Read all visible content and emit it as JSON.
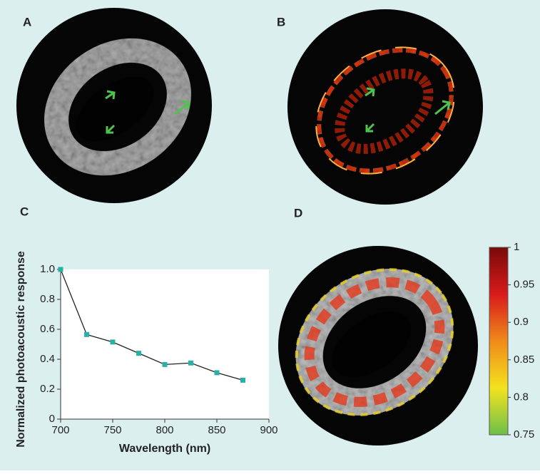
{
  "panels": {
    "a": "A",
    "b": "B",
    "c": "C",
    "d": "D"
  },
  "chart_data": {
    "type": "line",
    "x": [
      700,
      725,
      750,
      775,
      800,
      825,
      850,
      875
    ],
    "series": [
      {
        "name": "Normalized photoacoustic response",
        "color": "#2ab0a8",
        "values": [
          1.0,
          0.565,
          0.515,
          0.44,
          0.365,
          0.375,
          0.31,
          0.26
        ]
      }
    ],
    "xlabel": "Wavelength (nm)",
    "ylabel": "Normalized photoacoustic response",
    "xlim": [
      700,
      900
    ],
    "xticks": [
      700,
      750,
      800,
      850,
      900
    ],
    "ylim": [
      0,
      1
    ],
    "yticks": [
      0,
      0.2,
      0.4,
      0.6,
      0.8,
      {
        "value": 1,
        "label": "1.0"
      }
    ]
  },
  "colorbar": {
    "lim": [
      0.75,
      1
    ],
    "ticks": [
      1,
      0.95,
      0.9,
      0.85,
      0.8,
      0.75
    ]
  }
}
